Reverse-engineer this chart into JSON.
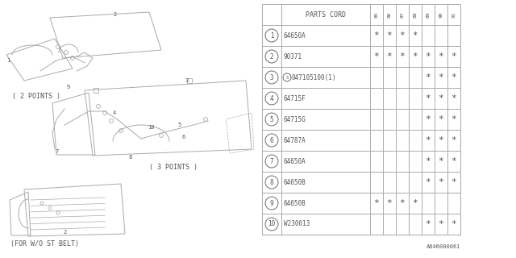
{
  "bg_color": "#ffffff",
  "line_color": "#aaaaaa",
  "text_color": "#555555",
  "table_header": "PARTS CORD",
  "columns": [
    "85",
    "86",
    "87",
    "88",
    "89",
    "90",
    "91"
  ],
  "rows": [
    {
      "num": "1",
      "part": "64650A",
      "marks": [
        1,
        1,
        1,
        1,
        0,
        0,
        0
      ]
    },
    {
      "num": "2",
      "part": "90371",
      "marks": [
        1,
        1,
        1,
        1,
        1,
        1,
        1
      ]
    },
    {
      "num": "3",
      "part": "S047105100(1)",
      "marks": [
        0,
        0,
        0,
        0,
        1,
        1,
        1
      ]
    },
    {
      "num": "4",
      "part": "64715F",
      "marks": [
        0,
        0,
        0,
        0,
        1,
        1,
        1
      ]
    },
    {
      "num": "5",
      "part": "64715G",
      "marks": [
        0,
        0,
        0,
        0,
        1,
        1,
        1
      ]
    },
    {
      "num": "6",
      "part": "64787A",
      "marks": [
        0,
        0,
        0,
        0,
        1,
        1,
        1
      ]
    },
    {
      "num": "7",
      "part": "64650A",
      "marks": [
        0,
        0,
        0,
        0,
        1,
        1,
        1
      ]
    },
    {
      "num": "8",
      "part": "64650B",
      "marks": [
        0,
        0,
        0,
        0,
        1,
        1,
        1
      ]
    },
    {
      "num": "9",
      "part": "64650B",
      "marks": [
        1,
        1,
        1,
        1,
        0,
        0,
        0
      ]
    },
    {
      "num": "10",
      "part": "W230013",
      "marks": [
        0,
        0,
        0,
        0,
        1,
        1,
        1
      ]
    }
  ],
  "footer": "A646000061",
  "label_top": "( 2 POINTS )",
  "label_mid": "( 3 POINTS )",
  "label_bot": "(FOR W/O ST BELT)"
}
